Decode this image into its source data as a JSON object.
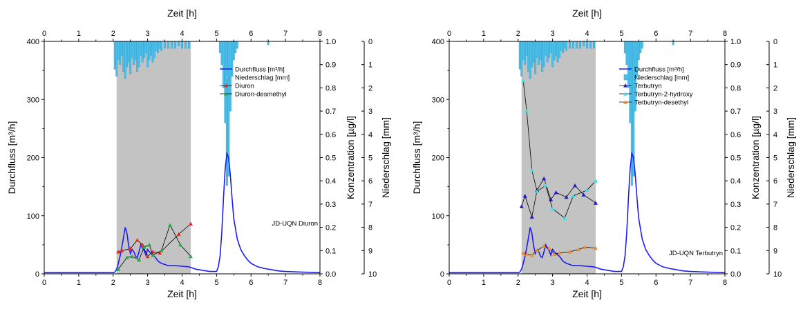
{
  "chart_data": [
    {
      "type": "line",
      "xlabel_top": "Zeit [h]",
      "xlabel_bottom": "Zeit [h]",
      "ylabel_left": "Durchfluss [m³/h]",
      "ylabel_conc": "Konzentration [µg/l]",
      "ylabel_precip": "Niederschlag [mm]",
      "xlim": [
        0,
        8
      ],
      "ylim_flow": [
        0,
        400
      ],
      "ylim_conc": [
        0,
        1.0
      ],
      "ylim_precip_inverted": [
        0,
        10
      ],
      "x_ticks": [
        "0",
        "1",
        "2",
        "3",
        "4",
        "5",
        "6",
        "7",
        "8"
      ],
      "flow_ticks": [
        "0",
        "100",
        "200",
        "300",
        "400"
      ],
      "conc_ticks": [
        "0.0",
        "0.1",
        "0.2",
        "0.3",
        "0.4",
        "0.5",
        "0.6",
        "0.7",
        "0.8",
        "0.9",
        "1.0"
      ],
      "precip_ticks": [
        "0",
        "1",
        "2",
        "3",
        "4",
        "5",
        "6",
        "7",
        "8",
        "9",
        "10"
      ],
      "shaded_interval": [
        2.1,
        4.25
      ],
      "annotation": "JD-UQN Diuron",
      "legend": [
        "Durchfluss [m³/h]",
        "Niederschlag [mm]",
        "Diuron",
        "Diuron-desmethyl"
      ],
      "colors": {
        "flow": "#1a1aff",
        "precip": "#4dbfe8",
        "s1": "#e8281e",
        "s2": "#2aa84a",
        "shade": "#c3c3c3"
      },
      "flow": {
        "x": [
          0,
          1,
          2,
          2.05,
          2.1,
          2.15,
          2.2,
          2.25,
          2.3,
          2.35,
          2.4,
          2.45,
          2.5,
          2.55,
          2.6,
          2.65,
          2.7,
          2.75,
          2.8,
          2.85,
          2.9,
          2.95,
          3.0,
          3.05,
          3.1,
          3.2,
          3.3,
          3.4,
          3.6,
          3.8,
          4.0,
          4.2,
          4.4,
          4.6,
          4.8,
          5.0,
          5.05,
          5.1,
          5.15,
          5.2,
          5.25,
          5.3,
          5.35,
          5.4,
          5.45,
          5.5,
          5.6,
          5.7,
          5.8,
          5.9,
          6.0,
          6.2,
          6.4,
          6.6,
          6.8,
          7.0,
          7.5,
          8.0
        ],
        "y": [
          2,
          2,
          2,
          3,
          8,
          18,
          30,
          45,
          62,
          80,
          70,
          48,
          35,
          42,
          38,
          30,
          28,
          38,
          50,
          44,
          40,
          32,
          42,
          38,
          35,
          30,
          22,
          18,
          14,
          14,
          13,
          12,
          8,
          6,
          4,
          4,
          12,
          30,
          70,
          130,
          180,
          207,
          200,
          170,
          130,
          95,
          60,
          42,
          32,
          24,
          18,
          12,
          9,
          7,
          5,
          4,
          3,
          2
        ]
      },
      "precipitation": {
        "x": [
          2.05,
          2.1,
          2.15,
          2.2,
          2.25,
          2.3,
          2.35,
          2.4,
          2.45,
          2.5,
          2.55,
          2.6,
          2.65,
          2.7,
          2.75,
          2.8,
          2.85,
          2.9,
          2.95,
          3.0,
          3.05,
          3.1,
          3.15,
          3.2,
          3.25,
          3.3,
          3.35,
          3.4,
          3.5,
          3.6,
          3.7,
          3.8,
          3.9,
          4.0,
          4.1,
          4.2,
          5.1,
          5.15,
          5.2,
          5.25,
          5.3,
          5.35,
          5.4,
          5.45,
          5.5,
          5.55,
          5.6,
          6.5
        ],
        "y": [
          1.2,
          1.5,
          0.8,
          1.0,
          0.6,
          1.3,
          1.6,
          1.1,
          0.9,
          1.4,
          0.7,
          1.0,
          0.8,
          1.3,
          1.1,
          0.6,
          0.9,
          0.7,
          0.5,
          1.1,
          0.8,
          0.6,
          0.9,
          0.7,
          0.4,
          0.5,
          0.3,
          0.4,
          0.3,
          0.3,
          0.3,
          0.3,
          0.2,
          0.3,
          0.3,
          0.3,
          0.5,
          1.0,
          2.0,
          3.5,
          6.2,
          5.8,
          3.0,
          1.5,
          0.8,
          0.5,
          0.3,
          0.15
        ]
      },
      "series": [
        {
          "name": "Diuron",
          "x": [
            2.15,
            2.25,
            2.5,
            2.7,
            2.85,
            3.0,
            3.15,
            3.35,
            3.9,
            4.25
          ],
          "y": [
            0.095,
            0.1,
            0.108,
            0.145,
            0.125,
            0.075,
            0.095,
            0.09,
            0.17,
            0.215
          ]
        },
        {
          "name": "Diuron-desmethyl",
          "x": [
            2.15,
            2.4,
            2.55,
            2.75,
            2.9,
            3.05,
            3.15,
            3.4,
            3.65,
            3.95,
            4.25
          ],
          "y": [
            0.02,
            0.07,
            0.075,
            0.06,
            0.115,
            0.125,
            0.08,
            0.1,
            0.21,
            0.125,
            0.075
          ]
        }
      ]
    },
    {
      "type": "line",
      "xlabel_top": "Zeit [h]",
      "xlabel_bottom": "Zeit [h]",
      "ylabel_left": "Durchfluss [m³/h]",
      "ylabel_conc": "Konzentration [µg/l]",
      "ylabel_precip": "Niederschlag [mm]",
      "xlim": [
        0,
        8
      ],
      "ylim_flow": [
        0,
        400
      ],
      "ylim_conc": [
        0,
        1.0
      ],
      "ylim_precip_inverted": [
        0,
        10
      ],
      "x_ticks": [
        "0",
        "1",
        "2",
        "3",
        "4",
        "5",
        "6",
        "7",
        "8"
      ],
      "flow_ticks": [
        "0",
        "100",
        "200",
        "300",
        "400"
      ],
      "conc_ticks": [
        "0.0",
        "0.1",
        "0.2",
        "0.3",
        "0.4",
        "0.5",
        "0.6",
        "0.7",
        "0.8",
        "0.9",
        "1.0"
      ],
      "precip_ticks": [
        "0",
        "1",
        "2",
        "3",
        "4",
        "5",
        "6",
        "7",
        "8",
        "9",
        "10"
      ],
      "shaded_interval": [
        2.1,
        4.25
      ],
      "annotation": "JD-UQN Terbutryn",
      "legend": [
        "Durchfluss [m³/h]",
        "Niederschlag [mm]",
        "Terbutryn",
        "Terbutryn-2-hydroxy",
        "Terbutryn-desethyl"
      ],
      "colors": {
        "flow": "#1a1aff",
        "precip": "#4dbfe8",
        "s1": "#1a1acc",
        "s2": "#33e0e8",
        "s3": "#f08c28",
        "shade": "#c3c3c3"
      },
      "flow": {
        "x": [
          0,
          1,
          2,
          2.05,
          2.1,
          2.15,
          2.2,
          2.25,
          2.3,
          2.35,
          2.4,
          2.45,
          2.5,
          2.55,
          2.6,
          2.65,
          2.7,
          2.75,
          2.8,
          2.85,
          2.9,
          2.95,
          3.0,
          3.05,
          3.1,
          3.2,
          3.3,
          3.4,
          3.6,
          3.8,
          4.0,
          4.2,
          4.4,
          4.6,
          4.8,
          5.0,
          5.05,
          5.1,
          5.15,
          5.2,
          5.25,
          5.3,
          5.35,
          5.4,
          5.45,
          5.5,
          5.6,
          5.7,
          5.8,
          5.9,
          6.0,
          6.2,
          6.4,
          6.6,
          6.8,
          7.0,
          7.5,
          8.0
        ],
        "y": [
          2,
          2,
          2,
          3,
          8,
          18,
          30,
          45,
          62,
          80,
          70,
          48,
          35,
          42,
          38,
          30,
          28,
          38,
          50,
          44,
          40,
          32,
          42,
          38,
          35,
          30,
          22,
          18,
          14,
          14,
          13,
          12,
          8,
          6,
          4,
          4,
          12,
          30,
          70,
          130,
          180,
          207,
          200,
          170,
          130,
          95,
          60,
          42,
          32,
          24,
          18,
          12,
          9,
          7,
          5,
          4,
          3,
          2
        ]
      },
      "precipitation": {
        "x": [
          2.05,
          2.1,
          2.15,
          2.2,
          2.25,
          2.3,
          2.35,
          2.4,
          2.45,
          2.5,
          2.55,
          2.6,
          2.65,
          2.7,
          2.75,
          2.8,
          2.85,
          2.9,
          2.95,
          3.0,
          3.05,
          3.1,
          3.15,
          3.2,
          3.25,
          3.3,
          3.35,
          3.4,
          3.5,
          3.6,
          3.7,
          3.8,
          3.9,
          4.0,
          4.1,
          4.2,
          5.1,
          5.15,
          5.2,
          5.25,
          5.3,
          5.35,
          5.4,
          5.45,
          5.5,
          5.55,
          5.6,
          6.5
        ],
        "y": [
          1.2,
          1.5,
          0.8,
          1.0,
          0.6,
          1.3,
          1.6,
          1.1,
          0.9,
          1.4,
          0.7,
          1.0,
          0.8,
          1.3,
          1.1,
          0.6,
          0.9,
          0.7,
          0.5,
          1.1,
          0.8,
          0.6,
          0.9,
          0.7,
          0.4,
          0.5,
          0.3,
          0.4,
          0.3,
          0.3,
          0.3,
          0.3,
          0.2,
          0.3,
          0.3,
          0.3,
          0.5,
          1.0,
          2.0,
          3.5,
          6.2,
          5.8,
          3.0,
          1.5,
          0.8,
          0.5,
          0.3,
          0.15
        ]
      },
      "series": [
        {
          "name": "Terbutryn",
          "x": [
            2.1,
            2.2,
            2.4,
            2.55,
            2.75,
            2.95,
            3.1,
            3.4,
            3.65,
            3.9,
            4.25
          ],
          "y": [
            0.29,
            0.335,
            0.245,
            0.36,
            0.41,
            0.32,
            0.35,
            0.33,
            0.38,
            0.34,
            0.305
          ]
        },
        {
          "name": "Terbutryn-2-hydroxy",
          "x": [
            2.15,
            2.25,
            2.4,
            2.55,
            2.8,
            3.0,
            3.35,
            3.6,
            4.0,
            4.25
          ],
          "y": [
            0.83,
            0.7,
            0.445,
            0.355,
            0.38,
            0.28,
            0.24,
            0.335,
            0.36,
            0.4
          ]
        },
        {
          "name": "Terbutryn-desethyl",
          "x": [
            2.15,
            2.25,
            2.4,
            2.55,
            2.75,
            2.9,
            3.05,
            3.2,
            3.5,
            3.75,
            3.95,
            4.25
          ],
          "y": [
            0.09,
            0.085,
            0.08,
            0.1,
            0.12,
            0.11,
            0.085,
            0.09,
            0.095,
            0.105,
            0.115,
            0.11
          ]
        }
      ]
    }
  ]
}
